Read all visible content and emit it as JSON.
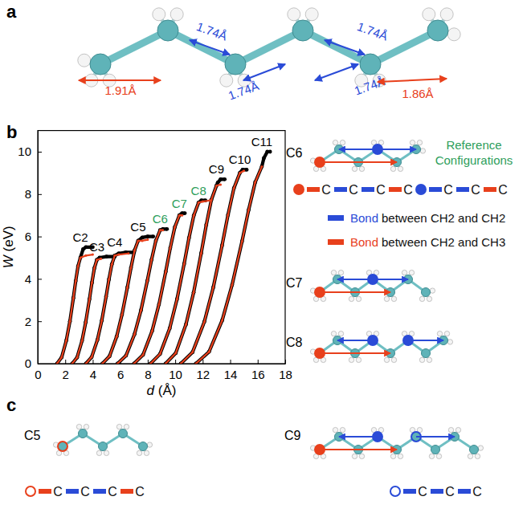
{
  "chart_data": {
    "type": "line",
    "panel_label": "b",
    "x_label": "d (Å)",
    "y_label": "W (eV)",
    "xlim": [
      0,
      18
    ],
    "xticks": [
      0,
      2,
      4,
      6,
      8,
      10,
      12,
      14,
      16,
      18
    ],
    "ylim": [
      0,
      11
    ],
    "yticks": [
      0,
      2,
      4,
      6,
      8,
      10
    ],
    "series": [
      {
        "name": "C2",
        "color": "#000000",
        "marker": "circle",
        "x": [
          1.4,
          1.74,
          2.08,
          2.34,
          2.59,
          2.76,
          2.93,
          3.1,
          3.3,
          3.5,
          4.0
        ],
        "values": [
          0,
          0.3,
          1.1,
          2.0,
          3.1,
          3.9,
          4.6,
          5.0,
          5.4,
          5.5,
          5.5
        ]
      },
      {
        "name": "C3",
        "color": "#000000",
        "marker": "circle",
        "x": [
          2.5,
          2.86,
          3.22,
          3.49,
          3.76,
          3.94,
          4.12,
          4.3,
          4.5,
          5.0,
          5.6
        ],
        "values": [
          0,
          0.29,
          1.08,
          1.96,
          3.04,
          3.82,
          4.51,
          4.9,
          5.0,
          5.05,
          5.05
        ]
      },
      {
        "name": "C4",
        "color": "#000000",
        "marker": "circle",
        "x": [
          3.5,
          3.92,
          4.34,
          4.66,
          4.97,
          5.18,
          5.39,
          5.6,
          5.9,
          6.4,
          7.0
        ],
        "values": [
          0,
          0.31,
          1.12,
          2.04,
          3.16,
          3.98,
          4.69,
          5.1,
          5.2,
          5.25,
          5.25
        ]
      },
      {
        "name": "C5",
        "color": "#000000",
        "marker": "circle",
        "x": [
          4.7,
          5.22,
          5.74,
          6.13,
          6.52,
          6.78,
          7.04,
          7.3,
          7.6,
          8.0,
          8.4
        ],
        "values": [
          0,
          0.35,
          1.28,
          2.32,
          3.6,
          4.52,
          5.34,
          5.8,
          5.95,
          6.0,
          6.0
        ]
      },
      {
        "name": "C6",
        "color": "#000000",
        "marker": "circle",
        "x": [
          5.8,
          6.42,
          7.04,
          7.51,
          7.97,
          8.28,
          8.59,
          8.9,
          9.1,
          9.4
        ],
        "values": [
          0,
          0.38,
          1.39,
          2.52,
          3.91,
          4.91,
          5.8,
          6.3,
          6.35,
          6.35
        ]
      },
      {
        "name": "C7",
        "color": "#000000",
        "marker": "circle",
        "x": [
          7.0,
          7.66,
          8.32,
          8.82,
          9.31,
          9.64,
          9.97,
          10.3,
          10.5,
          10.7
        ],
        "values": [
          0,
          0.42,
          1.54,
          2.8,
          4.34,
          5.46,
          6.44,
          7.0,
          7.1,
          7.1
        ]
      },
      {
        "name": "C8",
        "color": "#000000",
        "marker": "circle",
        "x": [
          8.2,
          8.9,
          9.6,
          10.13,
          10.65,
          11.0,
          11.35,
          11.7,
          11.9,
          12.2
        ],
        "values": [
          0,
          0.46,
          1.67,
          3.04,
          4.71,
          5.93,
          6.99,
          7.6,
          7.7,
          7.7
        ]
      },
      {
        "name": "C9",
        "color": "#000000",
        "marker": "circle",
        "x": [
          9.3,
          10.04,
          10.78,
          11.34,
          11.89,
          12.26,
          12.63,
          13.0,
          13.1,
          13.3,
          13.6
        ],
        "values": [
          0,
          0.5,
          1.85,
          3.36,
          5.21,
          6.55,
          7.73,
          8.4,
          8.55,
          8.7,
          8.7
        ]
      },
      {
        "name": "C10",
        "color": "#000000",
        "marker": "circle",
        "x": [
          10.4,
          11.26,
          12.12,
          12.77,
          13.41,
          13.84,
          14.27,
          14.7,
          14.9,
          15.2
        ],
        "values": [
          0,
          0.54,
          1.98,
          3.6,
          5.58,
          7.02,
          8.28,
          9.0,
          9.15,
          9.15
        ]
      },
      {
        "name": "C11",
        "color": "#000000",
        "marker": "circle",
        "x": [
          11.5,
          12.46,
          13.42,
          14.14,
          14.86,
          15.34,
          15.82,
          16.3,
          16.45,
          16.7,
          16.9
        ],
        "values": [
          0,
          0.56,
          2.05,
          3.72,
          5.77,
          7.25,
          8.56,
          9.3,
          9.7,
          10.0,
          10.0
        ]
      },
      {
        "color": "#e8401c",
        "marker": "circle",
        "x": [
          1.4,
          1.74,
          2.08,
          2.34,
          2.59,
          2.76,
          2.93,
          3.1,
          3.5,
          4.0
        ],
        "values": [
          0,
          0.3,
          1.1,
          2.0,
          3.1,
          3.9,
          4.6,
          5.0,
          5.1,
          5.15
        ]
      },
      {
        "color": "#e8401c",
        "marker": "circle",
        "x": [
          2.5,
          2.86,
          3.22,
          3.49,
          3.76,
          3.94,
          4.12,
          4.3,
          4.6
        ],
        "values": [
          0,
          0.29,
          1.08,
          1.96,
          3.04,
          3.82,
          4.51,
          4.9,
          4.95
        ]
      },
      {
        "color": "#e8401c",
        "marker": "circle",
        "x": [
          3.5,
          3.92,
          4.34,
          4.66,
          4.97,
          5.18,
          5.39,
          5.6,
          5.9,
          6.6
        ],
        "values": [
          0,
          0.31,
          1.12,
          2.04,
          3.16,
          3.98,
          4.69,
          5.1,
          5.15,
          5.2
        ]
      },
      {
        "color": "#e8401c",
        "marker": "circle",
        "x": [
          4.7,
          5.22,
          5.74,
          6.13,
          6.52,
          6.78,
          7.04,
          7.3,
          7.6,
          8.0
        ],
        "values": [
          0,
          0.35,
          1.28,
          2.32,
          3.6,
          4.52,
          5.34,
          5.8,
          5.8,
          5.85
        ]
      },
      {
        "color": "#e8401c",
        "marker": "circle",
        "x": [
          5.8,
          6.42,
          7.04,
          7.51,
          7.97,
          8.28,
          8.59,
          8.9,
          9.1
        ],
        "values": [
          0,
          0.38,
          1.39,
          2.52,
          3.91,
          4.91,
          5.8,
          6.3,
          6.3
        ]
      },
      {
        "color": "#e8401c",
        "marker": "circle",
        "x": [
          7.0,
          7.66,
          8.32,
          8.82,
          9.31,
          9.64,
          9.97,
          10.3,
          10.5
        ],
        "values": [
          0,
          0.42,
          1.54,
          2.8,
          4.34,
          5.46,
          6.44,
          7.0,
          7.0
        ]
      },
      {
        "color": "#e8401c",
        "marker": "circle",
        "x": [
          8.2,
          8.9,
          9.6,
          10.13,
          10.65,
          11.0,
          11.35,
          11.7,
          12.0,
          12.5
        ],
        "values": [
          0,
          0.46,
          1.67,
          3.04,
          4.71,
          5.93,
          6.99,
          7.6,
          7.65,
          7.7
        ]
      },
      {
        "color": "#e8401c",
        "marker": "circle",
        "x": [
          9.3,
          10.04,
          10.78,
          11.34,
          11.89,
          12.26,
          12.63,
          13.0,
          13.3
        ],
        "values": [
          0,
          0.5,
          1.85,
          3.36,
          5.21,
          6.55,
          7.73,
          8.4,
          8.45
        ]
      },
      {
        "color": "#e8401c",
        "marker": "circle",
        "x": [
          10.4,
          11.26,
          12.12,
          12.77,
          13.41,
          13.84,
          14.27,
          14.7,
          15.0
        ],
        "values": [
          0,
          0.54,
          1.98,
          3.6,
          5.58,
          7.02,
          8.28,
          9.0,
          9.1
        ]
      },
      {
        "color": "#e8401c",
        "marker": "circle",
        "x": [
          11.5,
          12.46,
          13.42,
          14.14,
          14.86,
          15.34,
          15.82,
          16.3
        ],
        "values": [
          0,
          0.56,
          2.05,
          3.72,
          5.77,
          7.25,
          8.56,
          9.3
        ]
      }
    ]
  },
  "panel_a": {
    "label": "a",
    "distances": [
      {
        "text": "1.74Å",
        "color": "#2a4bd7"
      },
      {
        "text": "1.74Å",
        "color": "#2a4bd7"
      },
      {
        "text": "1.74Å",
        "color": "#2a4bd7"
      },
      {
        "text": "1.74Å",
        "color": "#2a4bd7"
      },
      {
        "text": "1.91Å",
        "color": "#e8401c"
      },
      {
        "text": "1.86Å",
        "color": "#e8401c"
      }
    ]
  },
  "reference": {
    "title_lines": [
      "Reference",
      "Configurations"
    ],
    "color": "#2e9e5b",
    "molecules": [
      {
        "label": "C6"
      },
      {
        "label": "C7"
      },
      {
        "label": "C8"
      }
    ],
    "chains": [
      {
        "marker": "filled",
        "marker_color": "#e8401c",
        "bonds": [
          "#e8401c",
          "#2a4bd7",
          "#2a4bd7",
          "#e8401c"
        ],
        "atoms": [
          "C",
          "C",
          "C",
          "C"
        ]
      },
      {
        "marker": "filled",
        "marker_color": "#2a4bd7",
        "bonds": [
          "#2a4bd7",
          "#2a4bd7",
          "#e8401c"
        ],
        "atoms": [
          "C",
          "C",
          "C"
        ]
      }
    ],
    "bond_legend": [
      {
        "color": "#2a4bd7",
        "word": "Bond",
        "text": "between CH2 and CH2"
      },
      {
        "color": "#e8401c",
        "word": "Bond",
        "text": "between CH2 and CH3"
      }
    ]
  },
  "panel_c": {
    "label": "c",
    "molecules": [
      {
        "label": "C5",
        "chain": {
          "marker": "hollow",
          "marker_color": "#e8401c",
          "bonds": [
            "#e8401c",
            "#2a4bd7",
            "#2a4bd7",
            "#e8401c"
          ],
          "atoms": [
            "C",
            "C",
            "C",
            "C"
          ]
        }
      },
      {
        "label": "C9",
        "chain": {
          "marker": "hollow",
          "marker_color": "#2a4bd7",
          "bonds": [
            "#2a4bd7",
            "#2a4bd7",
            "#2a4bd7"
          ],
          "atoms": [
            "C",
            "C",
            "C"
          ]
        }
      }
    ]
  }
}
